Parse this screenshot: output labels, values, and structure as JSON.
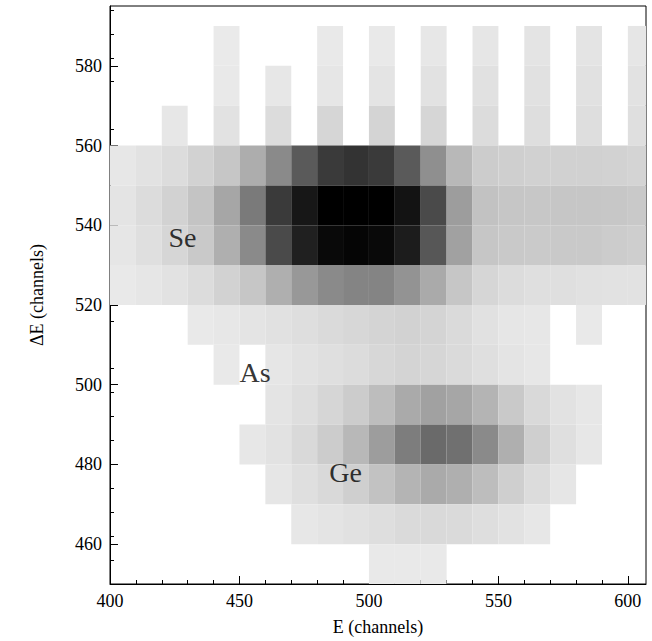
{
  "chart_data": {
    "type": "heatmap",
    "x_label": "E (channels)",
    "y_label": "ΔE (channels)",
    "xlim": [
      400,
      607
    ],
    "ylim": [
      450,
      595
    ],
    "xticks": [
      400,
      450,
      500,
      550,
      600
    ],
    "yticks": [
      460,
      480,
      500,
      520,
      540,
      560,
      580
    ],
    "grid": false,
    "cell_size": [
      10,
      10
    ],
    "color_range": [
      0,
      100
    ],
    "annotations": [
      {
        "text": "Se",
        "x": 428,
        "y": 537
      },
      {
        "text": "As",
        "x": 456,
        "y": 503
      },
      {
        "text": "Ge",
        "x": 491,
        "y": 478
      }
    ],
    "cells": [
      [
        440,
        580,
        1
      ],
      [
        480,
        580,
        2
      ],
      [
        500,
        580,
        2
      ],
      [
        520,
        580,
        3
      ],
      [
        540,
        580,
        4
      ],
      [
        560,
        580,
        5
      ],
      [
        580,
        580,
        5
      ],
      [
        600,
        580,
        4
      ],
      [
        440,
        570,
        2
      ],
      [
        460,
        570,
        3
      ],
      [
        480,
        570,
        4
      ],
      [
        500,
        570,
        5
      ],
      [
        520,
        570,
        6
      ],
      [
        540,
        570,
        7
      ],
      [
        560,
        570,
        7
      ],
      [
        580,
        570,
        7
      ],
      [
        600,
        570,
        6
      ],
      [
        420,
        560,
        3
      ],
      [
        440,
        560,
        6
      ],
      [
        460,
        560,
        10
      ],
      [
        480,
        560,
        14
      ],
      [
        500,
        560,
        15
      ],
      [
        520,
        560,
        14
      ],
      [
        540,
        560,
        10
      ],
      [
        560,
        560,
        9
      ],
      [
        580,
        560,
        9
      ],
      [
        600,
        560,
        8
      ],
      [
        400,
        550,
        3
      ],
      [
        410,
        550,
        6
      ],
      [
        420,
        550,
        10
      ],
      [
        430,
        550,
        16
      ],
      [
        440,
        550,
        24
      ],
      [
        450,
        550,
        35
      ],
      [
        460,
        550,
        50
      ],
      [
        470,
        550,
        65
      ],
      [
        480,
        550,
        75
      ],
      [
        490,
        550,
        78
      ],
      [
        500,
        550,
        75
      ],
      [
        510,
        550,
        65
      ],
      [
        520,
        550,
        48
      ],
      [
        530,
        550,
        30
      ],
      [
        540,
        550,
        20
      ],
      [
        550,
        550,
        18
      ],
      [
        560,
        550,
        17
      ],
      [
        570,
        550,
        17
      ],
      [
        580,
        550,
        17
      ],
      [
        590,
        550,
        16
      ],
      [
        600,
        550,
        15
      ],
      [
        400,
        540,
        5
      ],
      [
        410,
        540,
        10
      ],
      [
        420,
        540,
        16
      ],
      [
        430,
        540,
        25
      ],
      [
        440,
        540,
        38
      ],
      [
        450,
        540,
        55
      ],
      [
        460,
        540,
        75
      ],
      [
        470,
        540,
        90
      ],
      [
        480,
        540,
        100
      ],
      [
        490,
        540,
        100
      ],
      [
        500,
        540,
        100
      ],
      [
        510,
        540,
        92
      ],
      [
        520,
        540,
        70
      ],
      [
        530,
        540,
        42
      ],
      [
        540,
        540,
        26
      ],
      [
        550,
        540,
        24
      ],
      [
        560,
        540,
        23
      ],
      [
        570,
        540,
        24
      ],
      [
        580,
        540,
        24
      ],
      [
        590,
        540,
        23
      ],
      [
        600,
        540,
        22
      ],
      [
        400,
        530,
        4
      ],
      [
        410,
        530,
        8
      ],
      [
        420,
        530,
        14
      ],
      [
        430,
        530,
        22
      ],
      [
        440,
        530,
        34
      ],
      [
        450,
        530,
        50
      ],
      [
        460,
        530,
        70
      ],
      [
        470,
        530,
        86
      ],
      [
        480,
        530,
        96
      ],
      [
        490,
        530,
        98
      ],
      [
        500,
        530,
        96
      ],
      [
        510,
        530,
        88
      ],
      [
        520,
        530,
        66
      ],
      [
        530,
        530,
        40
      ],
      [
        540,
        530,
        24
      ],
      [
        550,
        530,
        22
      ],
      [
        560,
        530,
        21
      ],
      [
        570,
        530,
        22
      ],
      [
        580,
        530,
        22
      ],
      [
        590,
        530,
        20
      ],
      [
        600,
        530,
        19
      ],
      [
        400,
        520,
        2
      ],
      [
        410,
        520,
        4
      ],
      [
        420,
        520,
        6
      ],
      [
        430,
        520,
        10
      ],
      [
        440,
        520,
        16
      ],
      [
        450,
        520,
        24
      ],
      [
        460,
        520,
        34
      ],
      [
        470,
        520,
        44
      ],
      [
        480,
        520,
        50
      ],
      [
        490,
        520,
        52
      ],
      [
        500,
        520,
        52
      ],
      [
        510,
        520,
        46
      ],
      [
        520,
        520,
        36
      ],
      [
        530,
        520,
        24
      ],
      [
        540,
        520,
        14
      ],
      [
        550,
        520,
        10
      ],
      [
        560,
        520,
        8
      ],
      [
        570,
        520,
        8
      ],
      [
        580,
        520,
        7
      ],
      [
        590,
        520,
        6
      ],
      [
        600,
        520,
        6
      ],
      [
        430,
        510,
        2
      ],
      [
        440,
        510,
        3
      ],
      [
        450,
        510,
        5
      ],
      [
        460,
        510,
        7
      ],
      [
        470,
        510,
        9
      ],
      [
        480,
        510,
        11
      ],
      [
        490,
        510,
        13
      ],
      [
        500,
        510,
        15
      ],
      [
        510,
        510,
        16
      ],
      [
        520,
        510,
        15
      ],
      [
        530,
        510,
        11
      ],
      [
        540,
        510,
        7
      ],
      [
        550,
        510,
        4
      ],
      [
        560,
        510,
        3
      ],
      [
        580,
        510,
        2
      ],
      [
        440,
        500,
        2
      ],
      [
        460,
        500,
        4
      ],
      [
        470,
        500,
        6
      ],
      [
        480,
        500,
        8
      ],
      [
        490,
        500,
        10
      ],
      [
        500,
        500,
        13
      ],
      [
        510,
        500,
        15
      ],
      [
        520,
        500,
        14
      ],
      [
        530,
        500,
        11
      ],
      [
        540,
        500,
        8
      ],
      [
        550,
        500,
        5
      ],
      [
        560,
        500,
        3
      ],
      [
        460,
        490,
        5
      ],
      [
        470,
        490,
        9
      ],
      [
        480,
        490,
        14
      ],
      [
        490,
        490,
        20
      ],
      [
        500,
        490,
        28
      ],
      [
        510,
        490,
        36
      ],
      [
        520,
        490,
        40
      ],
      [
        530,
        490,
        38
      ],
      [
        540,
        490,
        32
      ],
      [
        550,
        490,
        22
      ],
      [
        560,
        490,
        12
      ],
      [
        570,
        490,
        6
      ],
      [
        580,
        490,
        3
      ],
      [
        450,
        480,
        3
      ],
      [
        460,
        480,
        6
      ],
      [
        470,
        480,
        12
      ],
      [
        480,
        480,
        20
      ],
      [
        490,
        480,
        30
      ],
      [
        500,
        480,
        42
      ],
      [
        510,
        480,
        54
      ],
      [
        520,
        480,
        60
      ],
      [
        530,
        480,
        58
      ],
      [
        540,
        480,
        50
      ],
      [
        550,
        480,
        34
      ],
      [
        560,
        480,
        18
      ],
      [
        570,
        480,
        8
      ],
      [
        580,
        480,
        3
      ],
      [
        460,
        470,
        4
      ],
      [
        470,
        470,
        8
      ],
      [
        480,
        470,
        12
      ],
      [
        490,
        470,
        18
      ],
      [
        500,
        470,
        26
      ],
      [
        510,
        470,
        32
      ],
      [
        520,
        470,
        36
      ],
      [
        530,
        470,
        34
      ],
      [
        540,
        470,
        28
      ],
      [
        550,
        470,
        18
      ],
      [
        560,
        470,
        10
      ],
      [
        570,
        470,
        4
      ],
      [
        470,
        460,
        3
      ],
      [
        480,
        460,
        5
      ],
      [
        490,
        460,
        7
      ],
      [
        500,
        460,
        9
      ],
      [
        510,
        460,
        11
      ],
      [
        520,
        460,
        12
      ],
      [
        530,
        460,
        11
      ],
      [
        540,
        460,
        9
      ],
      [
        550,
        460,
        6
      ],
      [
        560,
        460,
        3
      ],
      [
        500,
        450,
        2
      ],
      [
        510,
        450,
        2
      ],
      [
        520,
        450,
        2
      ]
    ]
  }
}
